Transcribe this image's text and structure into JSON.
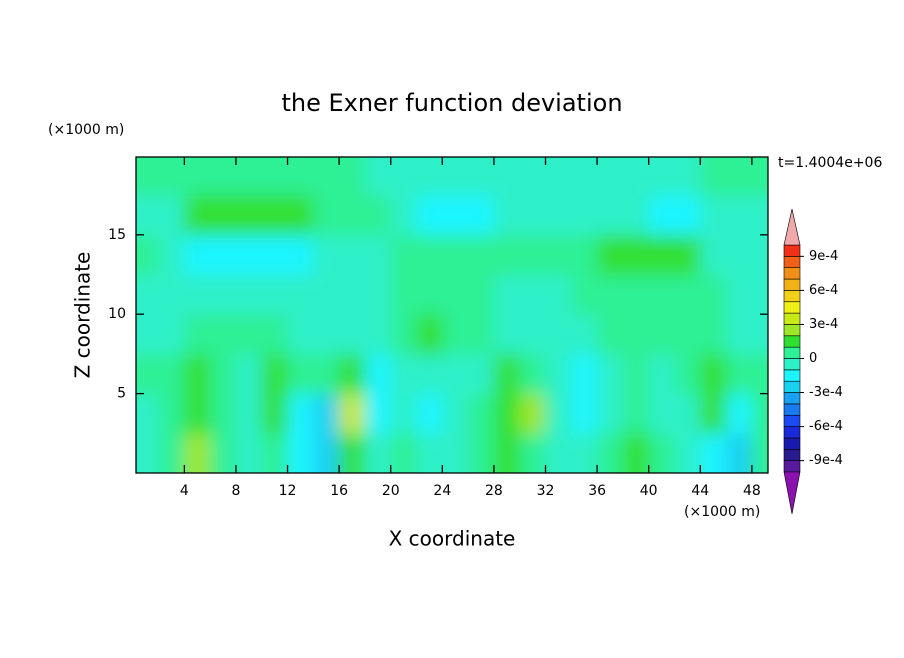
{
  "chart_data": {
    "type": "contour",
    "title": "the Exner function deviation",
    "x_label": "X coordinate",
    "y_label": "Z coordinate",
    "x_unit": "(×1000 m)",
    "y_unit": "(×1000 m)",
    "time_label": "t=1.4004e+06",
    "xlim": [
      0.25,
      49.25
    ],
    "ylim": [
      0,
      19.9
    ],
    "xticks": [
      4,
      8,
      12,
      16,
      20,
      24,
      28,
      32,
      36,
      40,
      44,
      48
    ],
    "yticks": [
      5,
      10,
      15
    ],
    "x": [
      1,
      3,
      5,
      7,
      9,
      11,
      13,
      15,
      17,
      19,
      21,
      23,
      25,
      27,
      29,
      31,
      33,
      35,
      37,
      39,
      41,
      43,
      45,
      47,
      49
    ],
    "y": [
      1.25,
      3.75,
      6.25,
      8.75,
      11.25,
      13.75,
      16.25,
      18.75
    ],
    "z": [
      [
        -5e-05,
        5e-05,
        0.00025,
        5e-05,
        -5e-05,
        5e-05,
        -0.00015,
        -0.00025,
        0.00015,
        -5e-05,
        5e-05,
        -5e-05,
        -5e-05,
        5e-05,
        0.00015,
        5e-05,
        -5e-05,
        -5e-05,
        5e-05,
        0.00015,
        5e-05,
        -5e-05,
        -0.00015,
        -0.00025,
        5e-05
      ],
      [
        -5e-05,
        5e-05,
        0.00015,
        5e-05,
        -5e-05,
        0.00015,
        -0.00015,
        -0.00025,
        0.00035,
        -0.00015,
        -5e-05,
        -0.00015,
        -5e-05,
        5e-05,
        0.00015,
        0.00025,
        -5e-05,
        -0.00015,
        -5e-05,
        5e-05,
        -5e-05,
        -5e-05,
        0.00015,
        -0.00015,
        5e-05
      ],
      [
        5e-05,
        5e-05,
        0.00015,
        5e-05,
        -5e-05,
        0.00015,
        5e-05,
        5e-05,
        0.00015,
        -0.00015,
        -5e-05,
        -5e-05,
        -5e-05,
        -5e-05,
        0.00015,
        5e-05,
        -5e-05,
        -0.00015,
        -5e-05,
        5e-05,
        -5e-05,
        5e-05,
        0.00015,
        5e-05,
        5e-05
      ],
      [
        -5e-05,
        -5e-05,
        5e-05,
        5e-05,
        5e-05,
        5e-05,
        -5e-05,
        -5e-05,
        -5e-05,
        -5e-05,
        5e-05,
        0.00015,
        5e-05,
        5e-05,
        -5e-05,
        -5e-05,
        -5e-05,
        -5e-05,
        5e-05,
        5e-05,
        5e-05,
        5e-05,
        5e-05,
        -5e-05,
        -5e-05
      ],
      [
        -5e-05,
        -5e-05,
        -5e-05,
        -5e-05,
        -5e-05,
        -5e-05,
        -5e-05,
        -5e-05,
        -5e-05,
        -5e-05,
        5e-05,
        5e-05,
        5e-05,
        5e-05,
        -5e-05,
        -5e-05,
        -5e-05,
        5e-05,
        5e-05,
        5e-05,
        5e-05,
        5e-05,
        5e-05,
        -5e-05,
        -5e-05
      ],
      [
        5e-05,
        -5e-05,
        -0.00015,
        -0.00015,
        -0.00015,
        -0.00015,
        -0.00015,
        -5e-05,
        -5e-05,
        -5e-05,
        5e-05,
        5e-05,
        5e-05,
        5e-05,
        5e-05,
        5e-05,
        5e-05,
        5e-05,
        0.00015,
        0.00015,
        0.00015,
        0.00015,
        -5e-05,
        -5e-05,
        -5e-05
      ],
      [
        -5e-05,
        -5e-05,
        0.00015,
        0.00015,
        0.00015,
        0.00015,
        0.00015,
        5e-05,
        5e-05,
        5e-05,
        -5e-05,
        -0.00015,
        -0.00015,
        -0.00015,
        -5e-05,
        -5e-05,
        -5e-05,
        -5e-05,
        -5e-05,
        -5e-05,
        -0.00015,
        -0.00015,
        -5e-05,
        -5e-05,
        -5e-05
      ],
      [
        5e-05,
        5e-05,
        5e-05,
        5e-05,
        5e-05,
        5e-05,
        5e-05,
        5e-05,
        5e-05,
        -5e-05,
        -5e-05,
        -5e-05,
        -5e-05,
        -5e-05,
        -5e-05,
        -5e-05,
        -5e-05,
        -5e-05,
        -5e-05,
        -5e-05,
        -5e-05,
        -5e-05,
        5e-05,
        5e-05,
        5e-05
      ]
    ],
    "colorbar": {
      "levels": [
        -0.001,
        -0.0009,
        -0.0008,
        -0.0007,
        -0.0006,
        -0.0005,
        -0.0004,
        -0.0003,
        -0.0002,
        -0.0001,
        0,
        0.0001,
        0.0002,
        0.0003,
        0.0004,
        0.0005,
        0.0006,
        0.0007,
        0.0008,
        0.0009,
        0.001
      ],
      "colors": [
        "#5a1aa0",
        "#2a1a90",
        "#1a1ab0",
        "#1a2ad8",
        "#1a4af0",
        "#1a7af0",
        "#1aa0f0",
        "#1ad0f0",
        "#1ef4ff",
        "#2ef0c8",
        "#2ef094",
        "#30e030",
        "#9ee628",
        "#c8e818",
        "#f0f018",
        "#f0d018",
        "#f0b018",
        "#f09018",
        "#f06018",
        "#f03018"
      ],
      "extend_colors": [
        "#8a10b0",
        "#f0a8a8"
      ],
      "ticks": [
        {
          "value": 0.0009,
          "label": "9e-4"
        },
        {
          "value": 0.0006,
          "label": "6e-4"
        },
        {
          "value": 0.0003,
          "label": "3e-4"
        },
        0,
        {
          "value": -0.0003,
          "label": "-3e-4"
        },
        {
          "value": -0.0006,
          "label": "-6e-4"
        },
        {
          "value": -0.0009,
          "label": "-9e-4"
        }
      ]
    }
  }
}
